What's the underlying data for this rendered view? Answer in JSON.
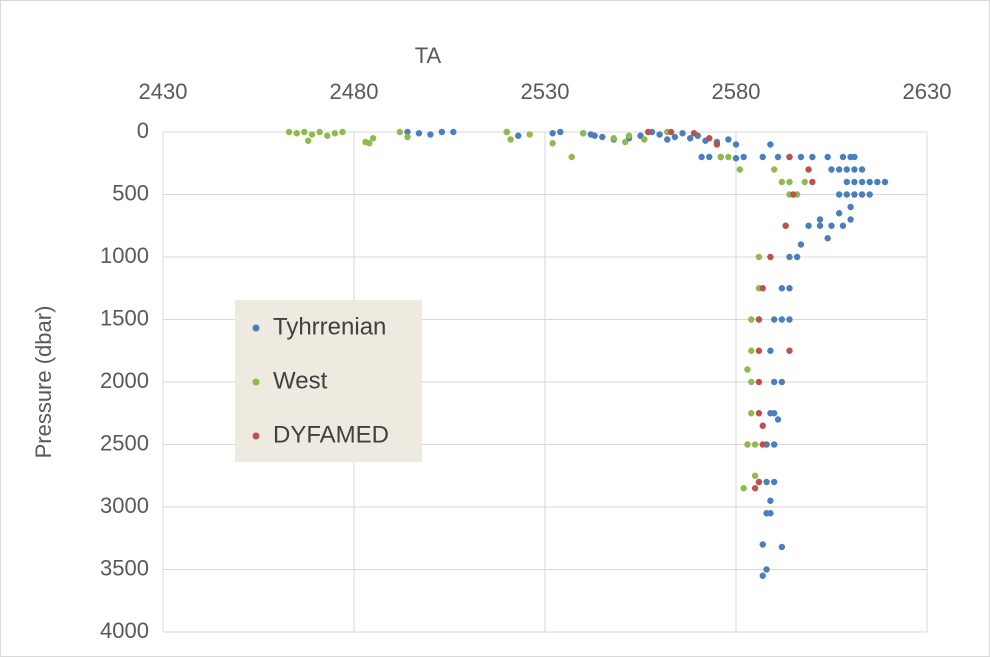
{
  "chart_data": {
    "type": "scatter",
    "x_label": "TA",
    "y_label": "Pressure (dbar)",
    "xlim": [
      2430,
      2630
    ],
    "xticks": [
      2430,
      2480,
      2530,
      2580,
      2630
    ],
    "ylim": [
      0,
      4000
    ],
    "yticks": [
      0,
      500,
      1000,
      1500,
      2000,
      2500,
      3000,
      3500,
      4000
    ],
    "y_inverted": true,
    "x_axis_position": "top",
    "grid": true,
    "legend_position": "left",
    "series": [
      {
        "name": "Tyhrrenian",
        "color": "#4a7ebf",
        "x": [
          2494,
          2497,
          2500,
          2503,
          2506,
          2520,
          2523,
          2532,
          2534,
          2540,
          2542,
          2543,
          2545,
          2548,
          2552,
          2555,
          2558,
          2560,
          2562,
          2564,
          2566,
          2568,
          2570,
          2572,
          2575,
          2578,
          2580,
          2589,
          2571,
          2573,
          2576,
          2580,
          2582,
          2587,
          2591,
          2594,
          2597,
          2600,
          2604,
          2608,
          2610,
          2611,
          2605,
          2607,
          2609,
          2611,
          2613,
          2609,
          2611,
          2613,
          2615,
          2617,
          2619,
          2607,
          2609,
          2611,
          2613,
          2615,
          2610,
          2607,
          2602,
          2610,
          2599,
          2602,
          2605,
          2608,
          2604,
          2597,
          2594,
          2596,
          2592,
          2594,
          2590,
          2592,
          2594,
          2589,
          2590,
          2592,
          2589,
          2590,
          2591,
          2588,
          2590,
          2588,
          2590,
          2589,
          2588,
          2589,
          2587,
          2592,
          2588,
          2587
        ],
        "values": [
          0,
          10,
          20,
          0,
          0,
          0,
          30,
          10,
          0,
          10,
          20,
          30,
          40,
          60,
          50,
          30,
          0,
          20,
          60,
          40,
          10,
          50,
          30,
          70,
          80,
          60,
          100,
          100,
          200,
          200,
          200,
          210,
          200,
          200,
          200,
          200,
          200,
          200,
          200,
          200,
          200,
          200,
          300,
          300,
          300,
          300,
          300,
          400,
          400,
          400,
          400,
          400,
          400,
          500,
          500,
          500,
          500,
          500,
          600,
          650,
          700,
          700,
          750,
          750,
          750,
          750,
          850,
          900,
          1000,
          1000,
          1250,
          1250,
          1500,
          1500,
          1500,
          1750,
          2000,
          2000,
          2250,
          2250,
          2300,
          2500,
          2500,
          2800,
          2800,
          2950,
          3050,
          3050,
          3300,
          3320,
          3500,
          3550
        ]
      },
      {
        "name": "West",
        "color": "#8fba4c",
        "x": [
          2463,
          2465,
          2467,
          2469,
          2471,
          2473,
          2475,
          2477,
          2483,
          2485,
          2492,
          2494,
          2520,
          2526,
          2540,
          2548,
          2552,
          2556,
          2562,
          2468,
          2484,
          2521,
          2532,
          2551,
          2537,
          2576,
          2578,
          2581,
          2590,
          2592,
          2594,
          2598,
          2594,
          2596,
          2593,
          2586,
          2586,
          2584,
          2586,
          2584,
          2583,
          2584,
          2584,
          2583,
          2585,
          2585,
          2586,
          2582
        ],
        "values": [
          0,
          10,
          0,
          20,
          0,
          30,
          10,
          0,
          80,
          50,
          0,
          40,
          0,
          20,
          10,
          50,
          30,
          60,
          0,
          70,
          90,
          60,
          90,
          80,
          200,
          200,
          200,
          300,
          300,
          400,
          400,
          400,
          500,
          500,
          750,
          1000,
          1250,
          1500,
          1500,
          1750,
          1900,
          2000,
          2250,
          2500,
          2500,
          2750,
          2800,
          2850
        ]
      },
      {
        "name": "DYFAMED",
        "color": "#c0504d",
        "x": [
          2557,
          2563,
          2569,
          2573,
          2575,
          2594,
          2599,
          2600,
          2595,
          2593,
          2589,
          2587,
          2586,
          2586,
          2594,
          2586,
          2586,
          2587,
          2587,
          2586,
          2585
        ],
        "values": [
          0,
          0,
          10,
          50,
          100,
          200,
          300,
          400,
          500,
          750,
          1000,
          1250,
          1500,
          1750,
          1750,
          2000,
          2250,
          2350,
          2500,
          2800,
          2850
        ]
      }
    ]
  }
}
